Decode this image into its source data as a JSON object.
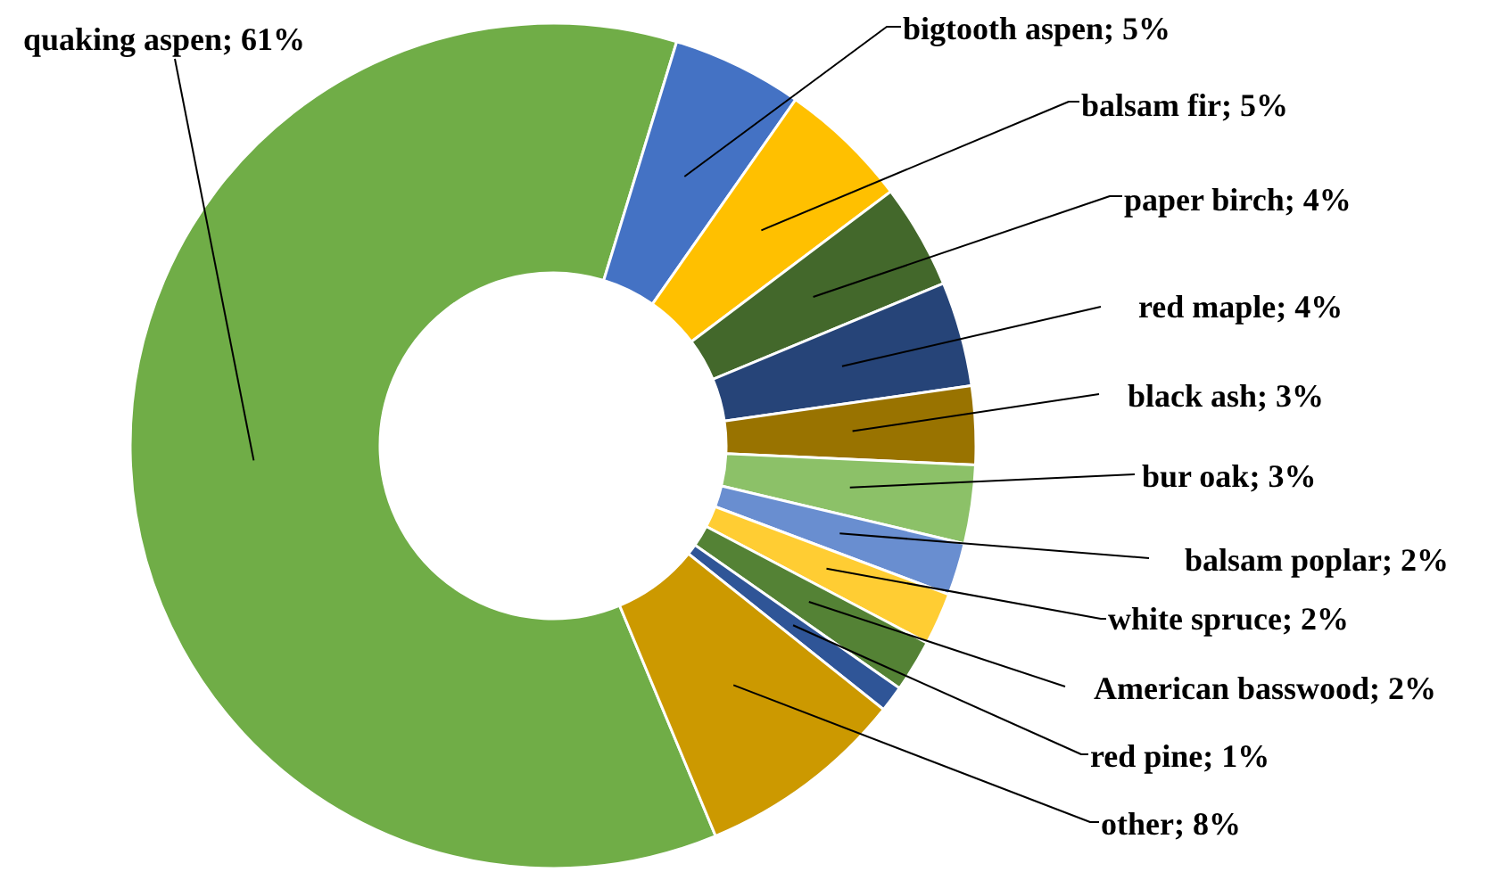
{
  "chart_data": {
    "type": "donut",
    "categories": [
      "quaking aspen",
      "bigtooth aspen",
      "balsam fir",
      "paper birch",
      "red maple",
      "black ash",
      "bur oak",
      "balsam poplar",
      "white spruce",
      "American basswood",
      "red pine",
      "other"
    ],
    "values": [
      61,
      5,
      5,
      4,
      4,
      3,
      3,
      2,
      2,
      2,
      1,
      8
    ],
    "colors": [
      "#70ad47",
      "#4472c4",
      "#ffc000",
      "#43682b",
      "#264478",
      "#997300",
      "#8cc168",
      "#698ed0",
      "#ffcd33",
      "#548235",
      "#2f5597",
      "#cc9900"
    ],
    "value_labels": [
      "61%",
      "5%",
      "5%",
      "4%",
      "4%",
      "3%",
      "3%",
      "2%",
      "2%",
      "2%",
      "1%",
      "8%"
    ]
  }
}
